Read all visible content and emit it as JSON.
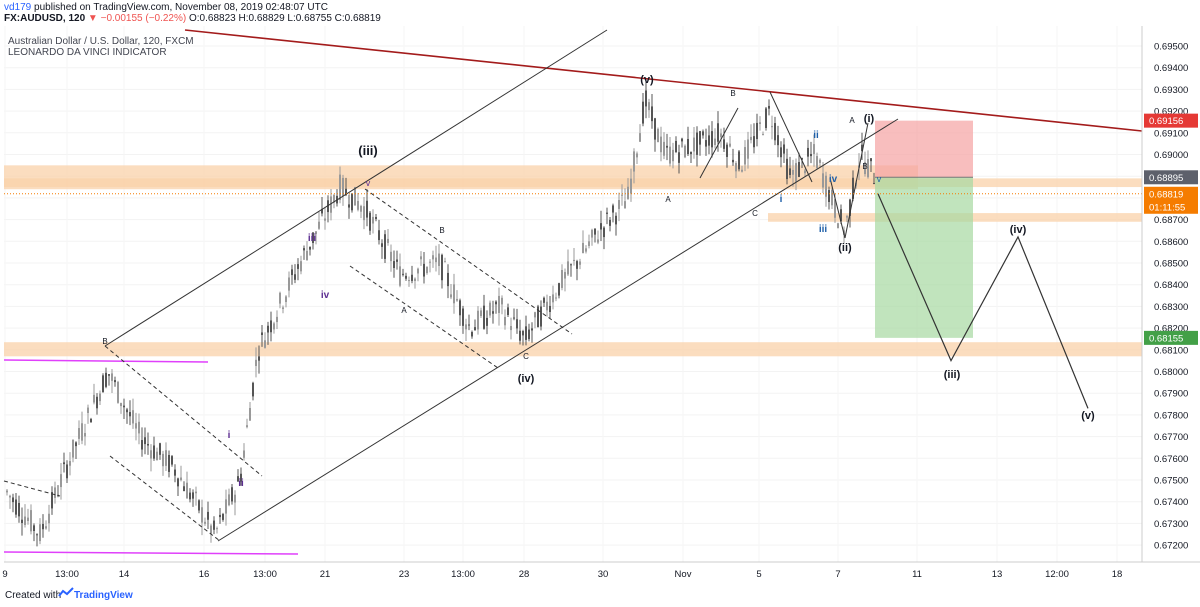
{
  "header": {
    "user": "vd179",
    "published": "published on TradingView.com, November 08, 2019 02:48:07 UTC",
    "symbol": "FX:AUDUSD, 120",
    "change": "▼ −0.00155 (−0.22%)",
    "ohlc": "O:0.68823 H:0.68829 L:0.68755 C:0.68819",
    "instrument_title": "Australian Dollar / U.S. Dollar, 120, FXCM",
    "indicator": "LEONARDO DA VINCI INDICATOR"
  },
  "footer": {
    "created_with": "Created with",
    "brand": "TradingView"
  },
  "chart_data": {
    "type": "candlestick",
    "y_ticks": [
      "0.69500",
      "0.69400",
      "0.69300",
      "0.69200",
      "0.69100",
      "0.69000",
      "0.68900",
      "0.68800",
      "0.68700",
      "0.68600",
      "0.68500",
      "0.68400",
      "0.68300",
      "0.68200",
      "0.68100",
      "0.68000",
      "0.67900",
      "0.67800",
      "0.67700",
      "0.67600",
      "0.67500",
      "0.67400",
      "0.67300",
      "0.67200"
    ],
    "x_ticks": [
      "9",
      "13:00",
      "14",
      "16",
      "13:00",
      "21",
      "23",
      "13:00",
      "28",
      "30",
      "Nov",
      "5",
      "7",
      "11",
      "13",
      "12:00",
      "18"
    ],
    "price_labels": [
      {
        "value": "0.69156",
        "color": "#e53935"
      },
      {
        "value": "0.68895",
        "color": "#5d606b"
      },
      {
        "value": "0.68819",
        "color": "#f57c00"
      },
      {
        "value": "01:11:55",
        "color": "#f57c00"
      },
      {
        "value": "0.68155",
        "color": "#43a047"
      }
    ],
    "annotations": [
      {
        "text": "(iii)",
        "color": "#131722"
      },
      {
        "text": "(v)",
        "color": "#131722"
      },
      {
        "text": "(iv)",
        "color": "#131722"
      },
      {
        "text": "(i)",
        "color": "#131722"
      },
      {
        "text": "(ii)",
        "color": "#131722"
      },
      {
        "text": "(iii)",
        "color": "#131722"
      },
      {
        "text": "(iv)",
        "color": "#131722"
      },
      {
        "text": "(v)",
        "color": "#131722"
      },
      {
        "text": "iii",
        "color": "#5c2d91"
      },
      {
        "text": "iv",
        "color": "#5c2d91"
      },
      {
        "text": "v",
        "color": "#5c2d91"
      },
      {
        "text": "i",
        "color": "#5c2d91"
      },
      {
        "text": "ii",
        "color": "#5c2d91"
      },
      {
        "text": "i",
        "color": "#1e5fa8"
      },
      {
        "text": "ii",
        "color": "#1e5fa8"
      },
      {
        "text": "iii",
        "color": "#1e5fa8"
      },
      {
        "text": "iv",
        "color": "#1e5fa8"
      },
      {
        "text": "v",
        "color": "#1e5fa8"
      },
      {
        "text": "A",
        "color": "#131722"
      },
      {
        "text": "B",
        "color": "#131722"
      },
      {
        "text": "C",
        "color": "#131722"
      },
      {
        "text": "A",
        "color": "#131722"
      },
      {
        "text": "B",
        "color": "#131722"
      },
      {
        "text": "C",
        "color": "#131722"
      },
      {
        "text": "A",
        "color": "#131722"
      },
      {
        "text": "B",
        "color": "#131722"
      },
      {
        "text": "B",
        "color": "#131722"
      }
    ],
    "projected_path": [
      "0.68819",
      "0.68050",
      "0.68620",
      "0.67830"
    ],
    "trade_box": {
      "entry": "0.68895",
      "stop": "0.69156",
      "target": "0.68155"
    },
    "colors": {
      "up": "#999999",
      "down": "#555555",
      "zone": "#f9d2a9",
      "trend": "#a31b1b",
      "stop": "#f5a3a3",
      "target": "#a6d9a1"
    }
  }
}
